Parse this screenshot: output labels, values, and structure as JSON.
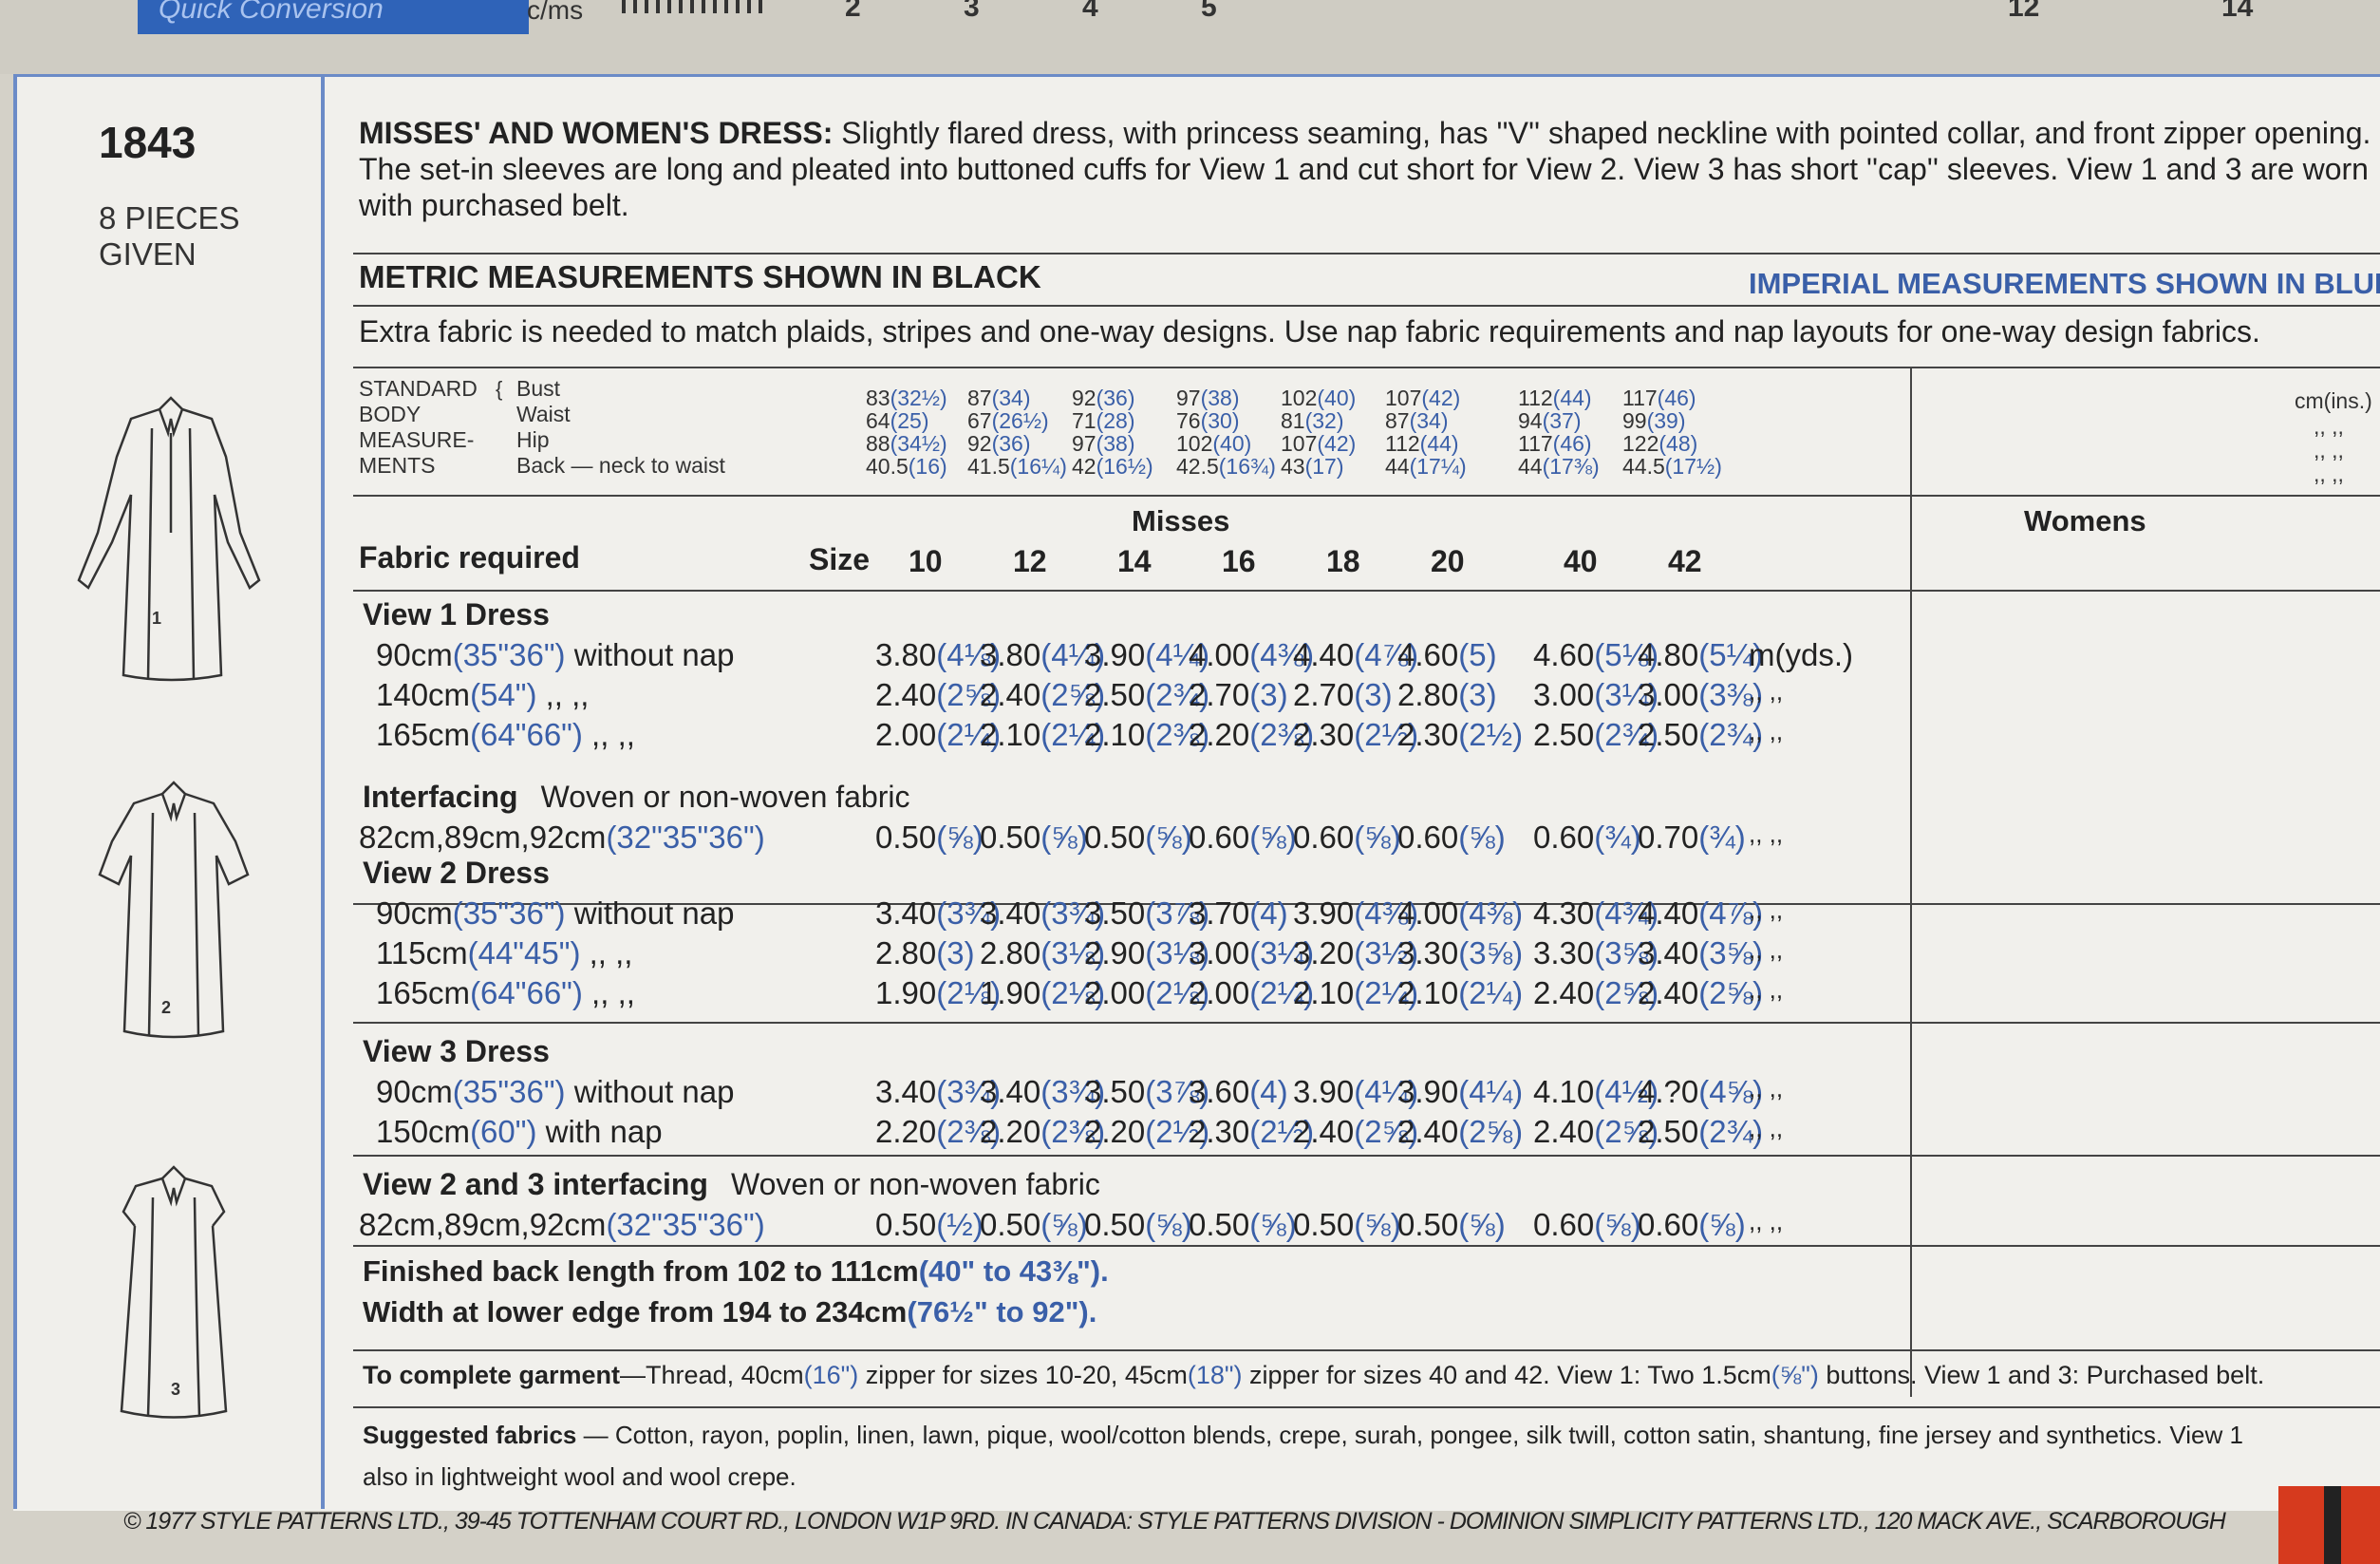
{
  "top_strip": {
    "tab_label": "Quick Conversion",
    "unit_label": "c/ms",
    "ruler_numbers": [
      "2",
      "3",
      "4",
      "5",
      "12",
      "14"
    ]
  },
  "left_panel": {
    "pattern_number": "1843",
    "pieces_line1": "8 PIECES",
    "pieces_line2": "GIVEN",
    "view_numbers": [
      "1",
      "2",
      "3"
    ]
  },
  "description": {
    "heading": "MISSES' AND WOMEN'S DRESS:",
    "text": " Slightly flared dress, with princess seaming, has ''V'' shaped neckline with pointed collar, and front zipper opening. The set-in sleeves are long and pleated into buttoned cuffs for View 1 and cut short for View 2. View 3 has short ''cap'' sleeves. View 1 and 3 are worn with purchased belt."
  },
  "measurement_heading": {
    "metric": "METRIC MEASUREMENTS SHOWN IN BLACK",
    "imperial": "IMPERIAL MEASUREMENTS SHOWN IN BLUE"
  },
  "note": "Extra fabric is needed to match plaids, stripes and one-way designs. Use nap fabric requirements and nap layouts for one-way design fabrics.",
  "body_measurements": {
    "label": [
      "STANDARD",
      "BODY",
      "MEASURE-",
      "MENTS"
    ],
    "rows": [
      "Bust",
      "Waist",
      "Hip",
      "Back — neck to waist"
    ],
    "unit": "cm(ins.)",
    "columns": [
      {
        "m": [
          "83",
          "64",
          "88",
          "40.5"
        ],
        "i": [
          "(32½)",
          "(25)",
          "(34½)",
          "(16)"
        ]
      },
      {
        "m": [
          "87",
          "67",
          "92",
          "41.5"
        ],
        "i": [
          "(34)",
          "(26½)",
          "(36)",
          "(16¼)"
        ]
      },
      {
        "m": [
          "92",
          "71",
          "97",
          "42"
        ],
        "i": [
          "(36)",
          "(28)",
          "(38)",
          "(16½)"
        ]
      },
      {
        "m": [
          "97",
          "76",
          "102",
          "42.5"
        ],
        "i": [
          "(38)",
          "(30)",
          "(40)",
          "(16¾)"
        ]
      },
      {
        "m": [
          "102",
          "81",
          "107",
          "43"
        ],
        "i": [
          "(40)",
          "(32)",
          "(42)",
          "(17)"
        ]
      },
      {
        "m": [
          "107",
          "87",
          "112",
          "44"
        ],
        "i": [
          "(42)",
          "(34)",
          "(44)",
          "(17¼)"
        ]
      },
      {
        "m": [
          "112",
          "94",
          "117",
          "44"
        ],
        "i": [
          "(44)",
          "(37)",
          "(46)",
          "(17⅜)"
        ]
      },
      {
        "m": [
          "117",
          "99",
          "122",
          "44.5"
        ],
        "i": [
          "(46)",
          "(39)",
          "(48)",
          "(17½)"
        ]
      }
    ]
  },
  "table": {
    "group_misses": "Misses",
    "group_womens": "Womens",
    "fabric_required": "Fabric required",
    "size_label": "Size",
    "sizes": [
      "10",
      "12",
      "14",
      "16",
      "18",
      "20",
      "40",
      "42"
    ],
    "unit_yds": "m(yds.)",
    "ditto": ",,   ,,",
    "sections": [
      {
        "title": "View 1   Dress",
        "rows": [
          {
            "m": "90cm",
            "i": "(35\"36\")",
            "suffix": " without nap",
            "vals": [
              [
                "3.80",
                "(4⅛)"
              ],
              [
                "3.80",
                "(4¼)"
              ],
              [
                "3.90",
                "(4¼)"
              ],
              [
                "4.00",
                "(4⅜)"
              ],
              [
                "4.40",
                "(4⅞)"
              ],
              [
                "4.60",
                "(5)"
              ],
              [
                "4.60",
                "(5⅛)"
              ],
              [
                "4.80",
                "(5¼)"
              ]
            ]
          },
          {
            "m": "140cm",
            "i": "(54\")",
            "suffix": "      ,,    ,,",
            "vals": [
              [
                "2.40",
                "(2⅝)"
              ],
              [
                "2.40",
                "(2⅝)"
              ],
              [
                "2.50",
                "(2¾)"
              ],
              [
                "2.70",
                "(3)"
              ],
              [
                "2.70",
                "(3)"
              ],
              [
                "2.80",
                "(3)"
              ],
              [
                "3.00",
                "(3¼)"
              ],
              [
                "3.00",
                "(3⅜)"
              ]
            ]
          },
          {
            "m": "165cm",
            "i": "(64\"66\")",
            "suffix": "    ,,    ,,",
            "vals": [
              [
                "2.00",
                "(2¼)"
              ],
              [
                "2.10",
                "(2¼)"
              ],
              [
                "2.10",
                "(2⅜)"
              ],
              [
                "2.20",
                "(2⅜)"
              ],
              [
                "2.30",
                "(2½)"
              ],
              [
                "2.30",
                "(2½)"
              ],
              [
                "2.50",
                "(2¾)"
              ],
              [
                "2.50",
                "(2¾)"
              ]
            ]
          }
        ]
      },
      {
        "title": "Interfacing",
        "subtitle": "Woven or non-woven fabric",
        "rows": [
          {
            "m": "82cm,89cm,92cm",
            "i": "(32\"35\"36\")",
            "suffix": "",
            "vals": [
              [
                "0.50",
                "(⅝)"
              ],
              [
                "0.50",
                "(⅝)"
              ],
              [
                "0.50",
                "(⅝)"
              ],
              [
                "0.60",
                "(⅝)"
              ],
              [
                "0.60",
                "(⅝)"
              ],
              [
                "0.60",
                "(⅝)"
              ],
              [
                "0.60",
                "(¾)"
              ],
              [
                "0.70",
                "(¾)"
              ]
            ]
          }
        ]
      },
      {
        "title": "View 2   Dress",
        "rows": [
          {
            "m": "90cm",
            "i": "(35\"36\")",
            "suffix": " without nap",
            "vals": [
              [
                "3.40",
                "(3¾)"
              ],
              [
                "3.40",
                "(3¾)"
              ],
              [
                "3.50",
                "(3⅞)"
              ],
              [
                "3.70",
                "(4)"
              ],
              [
                "3.90",
                "(4⅜)"
              ],
              [
                "4.00",
                "(4⅜)"
              ],
              [
                "4.30",
                "(4¾)"
              ],
              [
                "4.40",
                "(4⅞)"
              ]
            ]
          },
          {
            "m": "115cm",
            "i": "(44\"45\")",
            "suffix": "    ,,    ,,",
            "vals": [
              [
                "2.80",
                "(3)"
              ],
              [
                "2.80",
                "(3⅛)"
              ],
              [
                "2.90",
                "(3⅛)"
              ],
              [
                "3.00",
                "(3¼)"
              ],
              [
                "3.20",
                "(3½)"
              ],
              [
                "3.30",
                "(3⅝)"
              ],
              [
                "3.30",
                "(3⅝)"
              ],
              [
                "3.40",
                "(3⅝)"
              ]
            ]
          },
          {
            "m": "165cm",
            "i": "(64\"66\")",
            "suffix": "    ,,    ,,",
            "vals": [
              [
                "1.90",
                "(2⅛)"
              ],
              [
                "1.90",
                "(2⅛)"
              ],
              [
                "2.00",
                "(2⅛)"
              ],
              [
                "2.00",
                "(2¼)"
              ],
              [
                "2.10",
                "(2¼)"
              ],
              [
                "2.10",
                "(2¼)"
              ],
              [
                "2.40",
                "(2⅝)"
              ],
              [
                "2.40",
                "(2⅝)"
              ]
            ]
          }
        ]
      },
      {
        "title": "View 3   Dress",
        "rows": [
          {
            "m": "90cm",
            "i": "(35\"36\")",
            "suffix": " without nap",
            "vals": [
              [
                "3.40",
                "(3¾)"
              ],
              [
                "3.40",
                "(3¾)"
              ],
              [
                "3.50",
                "(3⅞)"
              ],
              [
                "3.60",
                "(4)"
              ],
              [
                "3.90",
                "(4¼)"
              ],
              [
                "3.90",
                "(4¼)"
              ],
              [
                "4.10",
                "(4½)"
              ],
              [
                "4.?0",
                "(4⅝)"
              ]
            ]
          },
          {
            "m": "150cm",
            "i": "(60\")",
            "suffix": " with nap",
            "vals": [
              [
                "2.20",
                "(2⅜)"
              ],
              [
                "2.20",
                "(2⅜)"
              ],
              [
                "2.20",
                "(2½)"
              ],
              [
                "2.30",
                "(2½)"
              ],
              [
                "2.40",
                "(2⅝)"
              ],
              [
                "2.40",
                "(2⅝)"
              ],
              [
                "2.40",
                "(2⅝)"
              ],
              [
                "2.50",
                "(2¾)"
              ]
            ]
          }
        ]
      },
      {
        "title": "View 2 and 3 interfacing",
        "subtitle": "Woven or non-woven fabric",
        "rows": [
          {
            "m": "82cm,89cm,92cm",
            "i": "(32\"35\"36\")",
            "suffix": "",
            "vals": [
              [
                "0.50",
                "(½)"
              ],
              [
                "0.50",
                "(⅝)"
              ],
              [
                "0.50",
                "(⅝)"
              ],
              [
                "0.50",
                "(⅝)"
              ],
              [
                "0.50",
                "(⅝)"
              ],
              [
                "0.50",
                "(⅝)"
              ],
              [
                "0.60",
                "(⅝)"
              ],
              [
                "0.60",
                "(⅝)"
              ]
            ]
          }
        ]
      }
    ]
  },
  "finished": {
    "line1_a": "Finished back length from 102 to 111cm",
    "line1_b": "(40\" to 43⅜\").",
    "line2_a": "Width at lower edge from 194 to 234cm",
    "line2_b": "(76½\" to 92\")."
  },
  "complete": {
    "heading": "To complete garment",
    "t1": "—Thread, 40cm",
    "b1": "(16\")",
    "t2": " zipper for sizes 10-20, 45cm",
    "b2": "(18\")",
    "t3": " zipper for sizes 40 and 42. View 1: Two 1.5cm",
    "b3": "(⅝\")",
    "t4": " buttons. View 1 and 3: Purchased belt."
  },
  "suggested": {
    "heading": "Suggested fabrics",
    "text1": " — Cotton, rayon, poplin, linen, lawn, pique, wool/cotton blends, crepe, surah, pongee, silk twill, cotton satin, shantung, fine jersey and synthetics. View 1",
    "text2": "also in lightweight wool and wool crepe."
  },
  "copyright": "© 1977 STYLE PATTERNS LTD., 39-45 TOTTENHAM COURT RD., LONDON W1P 9RD. IN CANADA: STYLE PATTERNS DIVISION - DOMINION SIMPLICITY PATTERNS LTD., 120 MACK AVE., SCARBOROUGH"
}
